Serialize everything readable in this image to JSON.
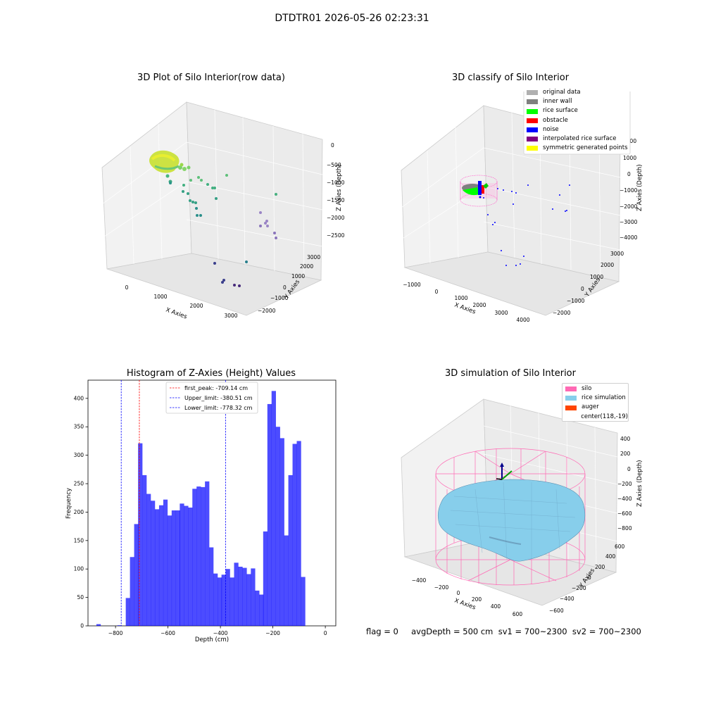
{
  "figure": {
    "suptitle": "DTDTR01 2026-05-26 02:23:31",
    "footer": "flag = 0     avgDepth = 500 cm  sv1 = 700~2300  sv2 = 700~2300"
  },
  "panels": {
    "raw": {
      "title": "3D Plot of Silo Interior(row data)",
      "xlabel": "X Axies",
      "ylabel": "Y Axies",
      "zlabel": "Z Axies (Depth)",
      "xticks": [
        "0",
        "1000",
        "2000",
        "3000"
      ],
      "yticks": [
        "3000",
        "2000",
        "1000",
        "0",
        "−1000",
        "−2000"
      ],
      "zticks": [
        "0",
        "−500",
        "−1000",
        "−1500",
        "−2000",
        "−2500"
      ]
    },
    "classify": {
      "title": "3D classify of Silo Interior",
      "xlabel": "X Axies",
      "ylabel": "Y Axies",
      "zlabel": "Z Axies (Depth)",
      "xticks": [
        "−1000",
        "0",
        "1000",
        "2000",
        "3000",
        "4000"
      ],
      "yticks": [
        "3000",
        "2000",
        "1000",
        "0",
        "−1000",
        "−2000"
      ],
      "zticks": [
        "2000",
        "1000",
        "0",
        "−1000",
        "−2000",
        "−3000",
        "−4000"
      ],
      "legend": [
        {
          "label": "original data",
          "color": "#b0b0b0"
        },
        {
          "label": "inner wall",
          "color": "#808080"
        },
        {
          "label": "rice surface",
          "color": "#00ff00"
        },
        {
          "label": "obstacle",
          "color": "#ff0000"
        },
        {
          "label": "noise",
          "color": "#0000ff"
        },
        {
          "label": "interpolated rice surface",
          "color": "#800080"
        },
        {
          "label": "symmetric generated points",
          "color": "#ffff00"
        }
      ]
    },
    "simulation": {
      "title": "3D simulation of Silo Interior",
      "xlabel": "X Axies",
      "ylabel": "Y Axies",
      "zlabel": "Z Axies (Depth)",
      "xticks": [
        "−400",
        "−200",
        "0",
        "200",
        "400",
        "600"
      ],
      "yticks": [
        "600",
        "400",
        "200",
        "0",
        "−200",
        "−400",
        "−600"
      ],
      "zticks": [
        "400",
        "200",
        "0",
        "−200",
        "−400",
        "−600",
        "−800"
      ],
      "legend": [
        {
          "label": "silo",
          "color": "#ff69b4"
        },
        {
          "label": "rice simulation",
          "color": "#87ceeb"
        },
        {
          "label": "auger",
          "color": "#ff4500"
        },
        {
          "label": "center(118,-19)",
          "color": ""
        }
      ]
    }
  },
  "chart_data": {
    "type": "bar",
    "title": "Histogram of Z-Axies (Height) Values",
    "xlabel": "Depth (cm)",
    "ylabel": "Frequency",
    "xlim": [
      -905,
      40
    ],
    "ylim": [
      0,
      432
    ],
    "bar_color": "#0000ff",
    "bin_width": 15.9,
    "bin_starts": [
      -873,
      -857,
      -841,
      -825,
      -809,
      -793,
      -777,
      -761,
      -745,
      -729,
      -714,
      -698,
      -682,
      -666,
      -650,
      -634,
      -618,
      -602,
      -586,
      -570,
      -555,
      -539,
      -523,
      -507,
      -491,
      -475,
      -459,
      -443,
      -427,
      -411,
      -396,
      -380,
      -364,
      -348,
      -332,
      -316,
      -300,
      -284,
      -268,
      -252,
      -237,
      -221,
      -205,
      -189,
      -173,
      -157,
      -141,
      -125,
      -109,
      -93,
      -78,
      -62,
      -46,
      -30,
      -14
    ],
    "values": [
      3,
      0,
      0,
      0,
      0,
      1,
      0,
      49,
      121,
      179,
      321,
      265,
      232,
      220,
      205,
      212,
      222,
      194,
      203,
      203,
      215,
      211,
      208,
      241,
      245,
      244,
      254,
      138,
      92,
      85,
      90,
      100,
      85,
      111,
      104,
      102,
      91,
      101,
      62,
      55,
      166,
      390,
      413,
      350,
      330,
      159,
      265,
      320,
      325,
      86,
      0,
      0,
      0,
      0,
      0
    ],
    "xticks": [
      -800,
      -600,
      -400,
      -200,
      0
    ],
    "xtick_labels": [
      "−800",
      "−600",
      "−400",
      "−200",
      "0"
    ],
    "yticks": [
      0,
      50,
      100,
      150,
      200,
      250,
      300,
      350,
      400
    ],
    "vlines": [
      {
        "label": "first_peak: -709.14 cm",
        "x": -709.14,
        "color": "#ff0000"
      },
      {
        "label": "Upper_limit: -380.51 cm",
        "x": -380.51,
        "color": "#0000ff"
      },
      {
        "label": "Lower_limit: -778.32 cm",
        "x": -778.32,
        "color": "#0000ff"
      }
    ]
  }
}
